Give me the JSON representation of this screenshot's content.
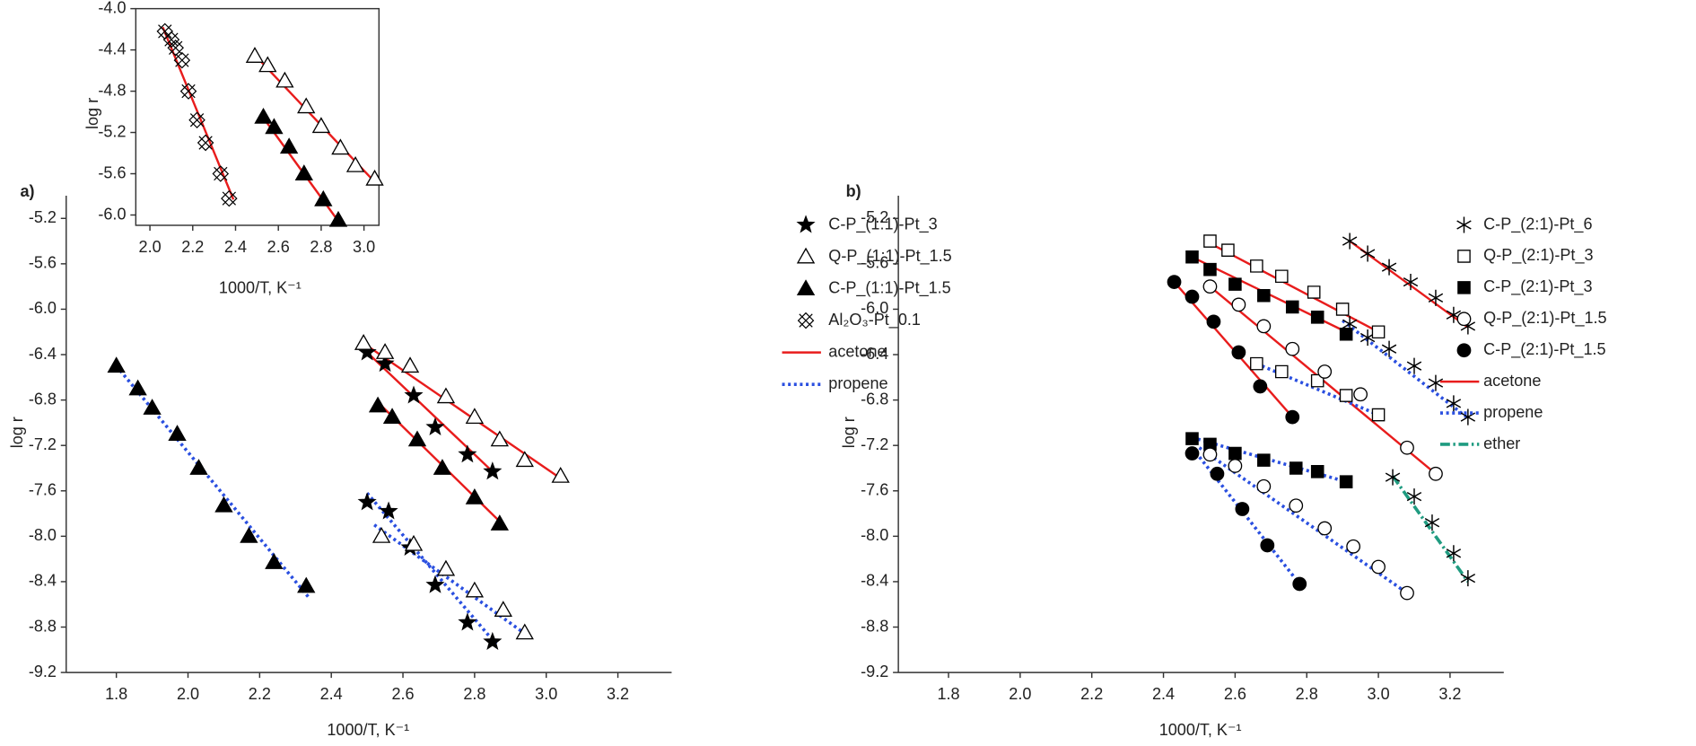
{
  "chart_data": [
    {
      "type": "scatter",
      "panel_label": "a)",
      "xlabel": "1000/T, K⁻¹",
      "ylabel": "log r",
      "xlim": [
        1.66,
        3.35
      ],
      "ylim": [
        -9.2,
        -5.0
      ],
      "xticks": [
        1.8,
        {
          "value": 2.0,
          "label": "2.0"
        },
        2.2,
        2.4,
        2.6,
        2.8,
        {
          "value": 3.0,
          "label": "3.0"
        },
        3.2
      ],
      "yticks": [
        -5.2,
        -5.6,
        {
          "value": -6.0,
          "label": "-6.0"
        },
        -6.4,
        -6.8,
        -7.2,
        -7.6,
        {
          "value": -8.0,
          "label": "-8.0"
        },
        -8.4,
        -8.8,
        -9.2
      ],
      "series": [
        {
          "name": "C-P_(1:1)-Pt_3",
          "marker": "star",
          "filled": true,
          "x": [
            2.5,
            2.55,
            2.63,
            2.69,
            2.78,
            2.85,
            2.5,
            2.56,
            2.62,
            2.69,
            2.78,
            2.85
          ],
          "y": [
            -6.38,
            -6.48,
            -6.76,
            -7.04,
            -7.28,
            -7.43,
            -7.7,
            -7.78,
            -8.1,
            -8.43,
            -8.76,
            -8.93
          ]
        },
        {
          "name": "Q-P_(1:1)-Pt_1.5",
          "marker": "triangle",
          "filled": false,
          "x": [
            2.49,
            2.55,
            2.62,
            2.72,
            2.8,
            2.87,
            2.94,
            3.04,
            2.54,
            2.63,
            2.72,
            2.8,
            2.88,
            2.94
          ],
          "y": [
            -6.3,
            -6.38,
            -6.5,
            -6.77,
            -6.95,
            -7.15,
            -7.33,
            -7.47,
            -8.0,
            -8.07,
            -8.29,
            -8.48,
            -8.65,
            -8.85
          ]
        },
        {
          "name": "C-P_(1:1)-Pt_1.5",
          "marker": "triangle",
          "filled": true,
          "x": [
            1.8,
            1.86,
            1.9,
            1.97,
            2.03,
            2.1,
            2.17,
            2.24,
            2.33,
            2.53,
            2.57,
            2.64,
            2.71,
            2.8,
            2.87
          ],
          "y": [
            -6.5,
            -6.7,
            -6.87,
            -7.1,
            -7.4,
            -7.73,
            -8.0,
            -8.23,
            -8.44,
            -6.85,
            -6.95,
            -7.15,
            -7.4,
            -7.66,
            -7.89
          ]
        },
        {
          "name": "Al₂O₃-Pt_0.1",
          "marker": "crossx",
          "filled": false,
          "x": [],
          "y": []
        }
      ],
      "lines": [
        {
          "name": "acetone",
          "color": "#e81c1c",
          "dash": "solid",
          "segments": [
            {
              "x": [
                2.5,
                2.85
              ],
              "y": [
                -6.38,
                -7.43
              ]
            },
            {
              "x": [
                2.49,
                3.04
              ],
              "y": [
                -6.3,
                -7.49
              ]
            },
            {
              "x": [
                2.53,
                2.88
              ],
              "y": [
                -6.82,
                -7.9
              ]
            }
          ]
        },
        {
          "name": "propene",
          "color": "#2a4fe0",
          "dash": "dotted",
          "segments": [
            {
              "x": [
                1.8,
                2.34
              ],
              "y": [
                -6.5,
                -8.55
              ]
            },
            {
              "x": [
                2.5,
                2.86
              ],
              "y": [
                -7.62,
                -8.95
              ]
            },
            {
              "x": [
                2.52,
                2.95
              ],
              "y": [
                -7.9,
                -8.88
              ]
            }
          ]
        }
      ]
    },
    {
      "type": "scatter",
      "panel_label": "b)",
      "xlabel": "1000/T, K⁻¹",
      "ylabel": "log r",
      "xlim": [
        1.66,
        3.35
      ],
      "ylim": [
        -9.2,
        -5.0
      ],
      "xticks": [
        1.8,
        {
          "value": 2.0,
          "label": "2.0"
        },
        2.2,
        2.4,
        2.6,
        2.8,
        {
          "value": 3.0,
          "label": "3.0"
        },
        3.2
      ],
      "yticks": [
        -5.2,
        -5.6,
        {
          "value": -6.0,
          "label": "-6.0"
        },
        -6.4,
        -6.8,
        -7.2,
        -7.6,
        {
          "value": -8.0,
          "label": "-8.0"
        },
        -8.4,
        -8.8,
        -9.2
      ],
      "series": [
        {
          "name": "C-P_(2:1)-Pt_6",
          "marker": "asterisk",
          "filled": false,
          "x": [
            2.92,
            2.97,
            3.03,
            3.09,
            3.16,
            3.21,
            3.25,
            2.92,
            2.97,
            3.03,
            3.1,
            3.16,
            3.21,
            3.25,
            3.04,
            3.1,
            3.15,
            3.21,
            3.25
          ],
          "y": [
            -5.4,
            -5.51,
            -5.63,
            -5.76,
            -5.9,
            -6.05,
            -6.15,
            -6.13,
            -6.25,
            -6.35,
            -6.5,
            -6.65,
            -6.83,
            -6.95,
            -7.48,
            -7.65,
            -7.88,
            -8.15,
            -8.37
          ]
        },
        {
          "name": "Q-P_(2:1)-Pt_3",
          "marker": "square",
          "filled": false,
          "x": [
            2.53,
            2.58,
            2.66,
            2.73,
            2.82,
            2.9,
            3.0,
            2.66,
            2.73,
            2.83,
            2.91,
            3.0
          ],
          "y": [
            -5.4,
            -5.48,
            -5.62,
            -5.71,
            -5.85,
            -6.0,
            -6.2,
            -6.48,
            -6.55,
            -6.63,
            -6.76,
            -6.93
          ]
        },
        {
          "name": "C-P_(2:1)-Pt_3",
          "marker": "square",
          "filled": true,
          "x": [
            2.48,
            2.53,
            2.6,
            2.68,
            2.76,
            2.83,
            2.91,
            2.48,
            2.53,
            2.6,
            2.68,
            2.77,
            2.83,
            2.91
          ],
          "y": [
            -5.54,
            -5.65,
            -5.78,
            -5.88,
            -5.98,
            -6.07,
            -6.22,
            -7.14,
            -7.19,
            -7.27,
            -7.33,
            -7.4,
            -7.43,
            -7.52
          ]
        },
        {
          "name": "Q-P_(2:1)-Pt_1.5",
          "marker": "circle",
          "filled": false,
          "x": [
            2.53,
            2.61,
            2.68,
            2.76,
            2.85,
            2.95,
            3.08,
            3.16,
            2.53,
            2.6,
            2.68,
            2.77,
            2.85,
            2.93,
            3.0,
            3.08
          ],
          "y": [
            -5.8,
            -5.96,
            -6.15,
            -6.35,
            -6.55,
            -6.75,
            -7.22,
            -7.45,
            -7.28,
            -7.38,
            -7.56,
            -7.73,
            -7.93,
            -8.09,
            -8.27,
            -8.5
          ]
        },
        {
          "name": "C-P_(2:1)-Pt_1.5",
          "marker": "circle",
          "filled": true,
          "x": [
            2.43,
            2.48,
            2.54,
            2.61,
            2.67,
            2.76,
            2.48,
            2.55,
            2.62,
            2.69,
            2.78
          ],
          "y": [
            -5.76,
            -5.89,
            -6.11,
            -6.38,
            -6.68,
            -6.95,
            -7.27,
            -7.45,
            -7.76,
            -8.08,
            -8.42
          ]
        }
      ],
      "lines": [
        {
          "name": "acetone",
          "color": "#e81c1c",
          "dash": "solid",
          "segments": [
            {
              "x": [
                2.92,
                3.25
              ],
              "y": [
                -5.4,
                -6.16
              ]
            },
            {
              "x": [
                2.53,
                3.0
              ],
              "y": [
                -5.42,
                -6.2
              ]
            },
            {
              "x": [
                2.48,
                2.91
              ],
              "y": [
                -5.54,
                -6.2
              ]
            },
            {
              "x": [
                2.53,
                3.16
              ],
              "y": [
                -5.8,
                -7.45
              ]
            },
            {
              "x": [
                2.43,
                2.76
              ],
              "y": [
                -5.76,
                -6.95
              ]
            }
          ]
        },
        {
          "name": "propene",
          "color": "#2a4fe0",
          "dash": "dotted",
          "segments": [
            {
              "x": [
                2.9,
                3.25
              ],
              "y": [
                -6.1,
                -6.96
              ]
            },
            {
              "x": [
                2.66,
                3.0
              ],
              "y": [
                -6.48,
                -6.93
              ]
            },
            {
              "x": [
                2.48,
                2.91
              ],
              "y": [
                -7.13,
                -7.52
              ]
            },
            {
              "x": [
                2.5,
                3.08
              ],
              "y": [
                -7.22,
                -8.5
              ]
            },
            {
              "x": [
                2.48,
                2.78
              ],
              "y": [
                -7.22,
                -8.42
              ]
            }
          ]
        },
        {
          "name": "ether",
          "color": "#1f9b80",
          "dash": "dashdot",
          "segments": [
            {
              "x": [
                3.04,
                3.25
              ],
              "y": [
                -7.47,
                -8.4
              ]
            }
          ]
        }
      ]
    },
    {
      "type": "scatter",
      "xlabel": "1000/T, K⁻¹",
      "ylabel": "log r",
      "frame": true,
      "xlim": [
        1.934,
        3.07
      ],
      "ylim": [
        -6.1,
        -4.0
      ],
      "xticks": [
        {
          "value": 2.0,
          "label": "2.0"
        },
        2.2,
        2.4,
        2.6,
        2.8,
        {
          "value": 3.0,
          "label": "3.0"
        }
      ],
      "yticks": [
        {
          "value": -4.0,
          "label": "-4.0"
        },
        -4.4,
        -4.8,
        -5.2,
        -5.6,
        {
          "value": -6.0,
          "label": "-6.0"
        }
      ],
      "series": [
        {
          "marker": "triangle",
          "filled": false,
          "x": [
            2.49,
            2.55,
            2.63,
            2.73,
            2.8,
            2.89,
            2.96,
            3.05
          ],
          "y": [
            -4.46,
            -4.55,
            -4.7,
            -4.95,
            -5.14,
            -5.35,
            -5.52,
            -5.65
          ]
        },
        {
          "marker": "triangle",
          "filled": true,
          "x": [
            2.53,
            2.58,
            2.65,
            2.72,
            2.81,
            2.88
          ],
          "y": [
            -5.05,
            -5.15,
            -5.34,
            -5.6,
            -5.85,
            -6.05
          ]
        },
        {
          "marker": "crossx",
          "filled": false,
          "x": [
            2.07,
            2.1,
            2.12,
            2.15,
            2.18,
            2.22,
            2.26,
            2.33,
            2.37
          ],
          "y": [
            -4.22,
            -4.3,
            -4.38,
            -4.5,
            -4.8,
            -5.08,
            -5.3,
            -5.6,
            -5.84
          ]
        }
      ],
      "lines": [
        {
          "color": "#e81c1c",
          "dash": "solid",
          "segments": [
            {
              "x": [
                2.49,
                3.05
              ],
              "y": [
                -4.45,
                -5.68
              ]
            },
            {
              "x": [
                2.52,
                2.88
              ],
              "y": [
                -5.03,
                -6.06
              ]
            },
            {
              "x": [
                2.06,
                2.39
              ],
              "y": [
                -4.18,
                -5.85
              ]
            }
          ]
        }
      ]
    }
  ]
}
